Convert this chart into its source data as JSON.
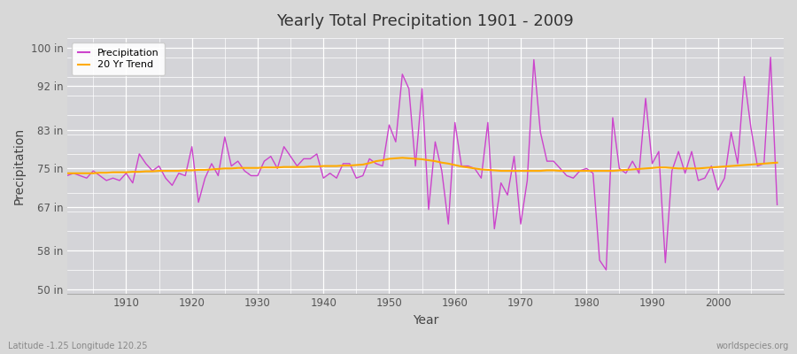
{
  "title": "Yearly Total Precipitation 1901 - 2009",
  "xlabel": "Year",
  "ylabel": "Precipitation",
  "left_label": "Latitude -1.25 Longitude 120.25",
  "right_label": "worldspecies.org",
  "fig_bg_color": "#d8d8d8",
  "plot_bg_color": "#d4d4d8",
  "precip_color": "#cc44cc",
  "trend_color": "#ffaa00",
  "legend_precip": "Precipitation",
  "legend_trend": "20 Yr Trend",
  "yticks": [
    50,
    58,
    67,
    75,
    83,
    92,
    100
  ],
  "ytick_labels": [
    "50 in",
    "58 in",
    "67 in",
    "75 in",
    "83 in",
    "92 in",
    "100 in"
  ],
  "xlim_min": 1901,
  "xlim_max": 2010,
  "ylim": [
    49,
    102
  ],
  "years": [
    1901,
    1902,
    1903,
    1904,
    1905,
    1906,
    1907,
    1908,
    1909,
    1910,
    1911,
    1912,
    1913,
    1914,
    1915,
    1916,
    1917,
    1918,
    1919,
    1920,
    1921,
    1922,
    1923,
    1924,
    1925,
    1926,
    1927,
    1928,
    1929,
    1930,
    1931,
    1932,
    1933,
    1934,
    1935,
    1936,
    1937,
    1938,
    1939,
    1940,
    1941,
    1942,
    1943,
    1944,
    1945,
    1946,
    1947,
    1948,
    1949,
    1950,
    1951,
    1952,
    1953,
    1954,
    1955,
    1956,
    1957,
    1958,
    1959,
    1960,
    1961,
    1962,
    1963,
    1964,
    1965,
    1966,
    1967,
    1968,
    1969,
    1970,
    1971,
    1972,
    1973,
    1974,
    1975,
    1976,
    1977,
    1978,
    1979,
    1980,
    1981,
    1982,
    1983,
    1984,
    1985,
    1986,
    1987,
    1988,
    1989,
    1990,
    1991,
    1992,
    1993,
    1994,
    1995,
    1996,
    1997,
    1998,
    1999,
    2000,
    2001,
    2002,
    2003,
    2004,
    2005,
    2006,
    2007,
    2008,
    2009
  ],
  "precip": [
    73.5,
    74.0,
    73.5,
    73.0,
    74.5,
    73.5,
    72.5,
    73.0,
    72.5,
    74.0,
    72.0,
    78.0,
    76.0,
    74.5,
    75.5,
    73.0,
    71.5,
    74.0,
    73.5,
    79.5,
    68.0,
    73.0,
    76.0,
    73.5,
    81.5,
    75.5,
    76.5,
    74.5,
    73.5,
    73.5,
    76.5,
    77.5,
    75.0,
    79.5,
    77.5,
    75.5,
    77.0,
    77.0,
    78.0,
    73.0,
    74.0,
    73.0,
    76.0,
    76.0,
    73.0,
    73.5,
    77.0,
    76.0,
    75.5,
    84.0,
    80.5,
    94.5,
    91.5,
    75.5,
    91.5,
    66.5,
    80.5,
    74.5,
    63.5,
    84.5,
    75.5,
    75.5,
    75.0,
    73.0,
    84.5,
    62.5,
    72.0,
    69.5,
    77.5,
    63.5,
    72.5,
    97.5,
    82.5,
    76.5,
    76.5,
    75.0,
    73.5,
    73.0,
    74.5,
    75.0,
    74.0,
    56.0,
    54.0,
    85.5,
    75.0,
    74.0,
    76.5,
    74.0,
    89.5,
    76.0,
    78.5,
    55.5,
    74.5,
    78.5,
    74.0,
    78.5,
    72.5,
    73.0,
    75.5,
    70.5,
    73.0,
    82.5,
    76.0,
    94.0,
    83.5,
    75.5,
    76.0,
    98.0,
    67.5
  ],
  "trend": [
    74.0,
    74.0,
    74.0,
    74.0,
    74.0,
    74.1,
    74.1,
    74.2,
    74.2,
    74.2,
    74.3,
    74.3,
    74.4,
    74.4,
    74.5,
    74.5,
    74.5,
    74.5,
    74.6,
    74.6,
    74.7,
    74.7,
    74.8,
    74.9,
    75.0,
    75.0,
    75.1,
    75.1,
    75.1,
    75.1,
    75.2,
    75.2,
    75.2,
    75.3,
    75.3,
    75.3,
    75.3,
    75.4,
    75.4,
    75.5,
    75.5,
    75.5,
    75.6,
    75.6,
    75.7,
    75.8,
    76.1,
    76.5,
    76.7,
    77.0,
    77.1,
    77.2,
    77.1,
    77.0,
    76.9,
    76.7,
    76.5,
    76.2,
    76.0,
    75.7,
    75.4,
    75.2,
    75.0,
    74.8,
    74.7,
    74.6,
    74.5,
    74.5,
    74.5,
    74.5,
    74.5,
    74.5,
    74.5,
    74.6,
    74.6,
    74.5,
    74.5,
    74.5,
    74.5,
    74.5,
    74.5,
    74.5,
    74.5,
    74.5,
    74.6,
    74.7,
    74.8,
    74.9,
    75.0,
    75.1,
    75.2,
    75.2,
    75.1,
    75.0,
    75.0,
    75.0,
    75.0,
    75.1,
    75.2,
    75.3,
    75.4,
    75.5,
    75.6,
    75.7,
    75.8,
    75.9,
    76.0,
    76.1,
    76.2
  ]
}
